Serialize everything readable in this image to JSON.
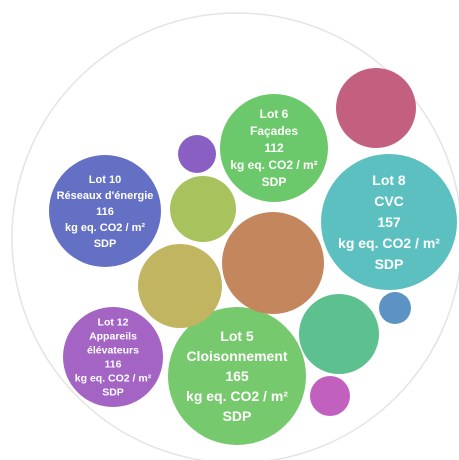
{
  "chart_data": {
    "type": "bubble",
    "unit": "kg eq. CO2 / m² SDP",
    "bubbles": [
      {
        "id": "lot-6",
        "name": "Lot 6",
        "sub": "Façades",
        "value": 112,
        "color": "#6cc96b",
        "label_lines": [
          "Lot 6",
          "Façades",
          "112",
          "kg eq. CO2 / m²",
          "SDP"
        ]
      },
      {
        "id": "lot-8",
        "name": "Lot 8",
        "sub": "CVC",
        "value": 157,
        "color": "#5cc0c0",
        "label_lines": [
          "Lot 8",
          "CVC",
          "157",
          "kg eq. CO2 / m²",
          "SDP"
        ]
      },
      {
        "id": "lot-10",
        "name": "Lot 10",
        "sub": "Réseaux d'énergie",
        "value": 116,
        "color": "#6470c4",
        "label_lines": [
          "Lot 10",
          "Réseaux d'énergie",
          "116",
          "kg eq. CO2 / m²",
          "SDP"
        ]
      },
      {
        "id": "lot-12",
        "name": "Lot 12",
        "sub": "Appareils élévateurs",
        "value": 116,
        "color": "#a464c4",
        "label_lines": [
          "Lot 12",
          "Appareils",
          "élévateurs",
          "116",
          "kg eq. CO2 / m²",
          "SDP"
        ]
      },
      {
        "id": "lot-5",
        "name": "Lot 5",
        "sub": "Cloisonnement",
        "value": 165,
        "color": "#76c96d",
        "label_lines": [
          "Lot 5",
          "Cloisonnement",
          "165",
          "kg eq. CO2 / m²",
          "SDP"
        ]
      },
      {
        "id": "center",
        "name": "",
        "color": "#c4875d",
        "label_lines": []
      },
      {
        "id": "olive-left",
        "name": "",
        "color": "#c2b562",
        "label_lines": []
      },
      {
        "id": "green-small",
        "name": "",
        "color": "#a8c35e",
        "label_lines": []
      },
      {
        "id": "magenta",
        "name": "",
        "color": "#c4607f",
        "label_lines": []
      },
      {
        "id": "teal-green",
        "name": "",
        "color": "#5cc08f",
        "label_lines": []
      },
      {
        "id": "purple-small",
        "name": "",
        "color": "#8a5fc4",
        "label_lines": []
      },
      {
        "id": "blue-small",
        "name": "",
        "color": "#5c93c4",
        "label_lines": []
      },
      {
        "id": "pink-small",
        "name": "",
        "color": "#c260c0",
        "label_lines": []
      }
    ]
  }
}
